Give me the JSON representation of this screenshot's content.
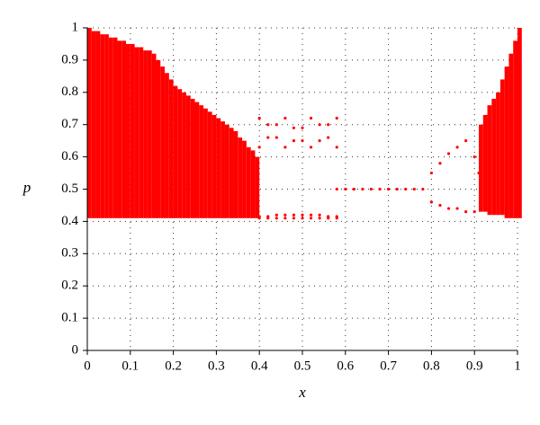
{
  "chart_data": {
    "type": "scatter",
    "x_label": "x",
    "y_label": "p",
    "xlim": [
      0,
      1
    ],
    "ylim": [
      0,
      1
    ],
    "xticks": [
      0,
      0.1,
      0.2,
      0.3,
      0.4,
      0.5,
      0.6,
      0.7,
      0.8,
      0.9,
      1
    ],
    "yticks": [
      0,
      0.1,
      0.2,
      0.3,
      0.4,
      0.5,
      0.6,
      0.7,
      0.8,
      0.9,
      1
    ],
    "grid": true,
    "bands": [
      {
        "color": "#ff0000",
        "x": [
          0,
          0.01,
          0.02,
          0.03,
          0.04,
          0.05,
          0.06,
          0.07,
          0.08,
          0.09,
          0.1,
          0.11,
          0.12,
          0.13,
          0.14,
          0.15,
          0.16,
          0.17,
          0.18,
          0.19,
          0.2,
          0.21,
          0.22,
          0.23,
          0.24,
          0.25,
          0.26,
          0.27,
          0.28,
          0.29,
          0.3,
          0.31,
          0.32,
          0.33,
          0.34,
          0.35,
          0.36,
          0.37,
          0.38,
          0.39
        ],
        "low": [
          0.41,
          0.41,
          0.41,
          0.41,
          0.41,
          0.41,
          0.41,
          0.41,
          0.41,
          0.41,
          0.41,
          0.41,
          0.41,
          0.41,
          0.41,
          0.41,
          0.41,
          0.41,
          0.41,
          0.41,
          0.41,
          0.41,
          0.41,
          0.41,
          0.41,
          0.41,
          0.41,
          0.41,
          0.41,
          0.41,
          0.41,
          0.41,
          0.41,
          0.41,
          0.41,
          0.41,
          0.41,
          0.41,
          0.41,
          0.41
        ],
        "high": [
          1,
          0.99,
          0.99,
          0.98,
          0.98,
          0.97,
          0.97,
          0.96,
          0.96,
          0.95,
          0.95,
          0.94,
          0.94,
          0.93,
          0.93,
          0.92,
          0.9,
          0.88,
          0.86,
          0.84,
          0.82,
          0.81,
          0.8,
          0.79,
          0.78,
          0.77,
          0.76,
          0.75,
          0.74,
          0.73,
          0.72,
          0.71,
          0.7,
          0.69,
          0.68,
          0.66,
          0.65,
          0.63,
          0.62,
          0.6
        ]
      },
      {
        "color": "#ff0000",
        "x": [
          0.91,
          0.92,
          0.93,
          0.94,
          0.95,
          0.96,
          0.97,
          0.98,
          0.99,
          1
        ],
        "low": [
          0.43,
          0.43,
          0.42,
          0.42,
          0.42,
          0.42,
          0.41,
          0.41,
          0.41,
          0.41
        ],
        "high": [
          0.7,
          0.73,
          0.76,
          0.78,
          0.8,
          0.84,
          0.88,
          0.92,
          0.96,
          1
        ]
      }
    ],
    "series": [
      {
        "color": "#ff0000",
        "x": [
          0.4,
          0.42,
          0.44,
          0.46,
          0.48,
          0.5,
          0.52,
          0.54,
          0.56,
          0.58
        ],
        "values": [
          0.72,
          0.7,
          0.66,
          0.63,
          0.65,
          0.69,
          0.72,
          0.7,
          0.66,
          0.63
        ]
      },
      {
        "color": "#ff0000",
        "x": [
          0.4,
          0.42,
          0.44,
          0.46,
          0.48,
          0.5,
          0.52,
          0.54,
          0.56,
          0.58
        ],
        "values": [
          0.63,
          0.66,
          0.7,
          0.72,
          0.69,
          0.65,
          0.63,
          0.65,
          0.7,
          0.72
        ]
      },
      {
        "color": "#ff0000",
        "x": [
          0.4,
          0.42,
          0.44,
          0.46,
          0.48,
          0.5,
          0.52,
          0.54,
          0.56,
          0.58
        ],
        "values": [
          0.415,
          0.415,
          0.42,
          0.42,
          0.42,
          0.42,
          0.42,
          0.42,
          0.415,
          0.415
        ]
      },
      {
        "color": "#ff0000",
        "x": [
          0.4,
          0.42,
          0.44,
          0.46,
          0.48,
          0.5,
          0.52,
          0.54,
          0.56,
          0.58
        ],
        "values": [
          0.41,
          0.41,
          0.41,
          0.41,
          0.41,
          0.41,
          0.41,
          0.41,
          0.41,
          0.41
        ]
      },
      {
        "color": "#ff0000",
        "x": [
          0.58,
          0.6,
          0.62,
          0.64,
          0.66,
          0.68,
          0.7,
          0.72,
          0.74,
          0.76,
          0.78
        ],
        "values": [
          0.5,
          0.5,
          0.5,
          0.5,
          0.5,
          0.5,
          0.5,
          0.5,
          0.5,
          0.5,
          0.5
        ]
      },
      {
        "color": "#ff0000",
        "x": [
          0.8,
          0.82,
          0.84,
          0.86,
          0.88,
          0.9,
          0.91
        ],
        "values": [
          0.55,
          0.58,
          0.61,
          0.63,
          0.65,
          0.6,
          0.55
        ]
      },
      {
        "color": "#ff0000",
        "x": [
          0.8,
          0.82,
          0.84,
          0.86,
          0.88,
          0.9
        ],
        "values": [
          0.46,
          0.45,
          0.44,
          0.44,
          0.43,
          0.43
        ]
      }
    ]
  }
}
